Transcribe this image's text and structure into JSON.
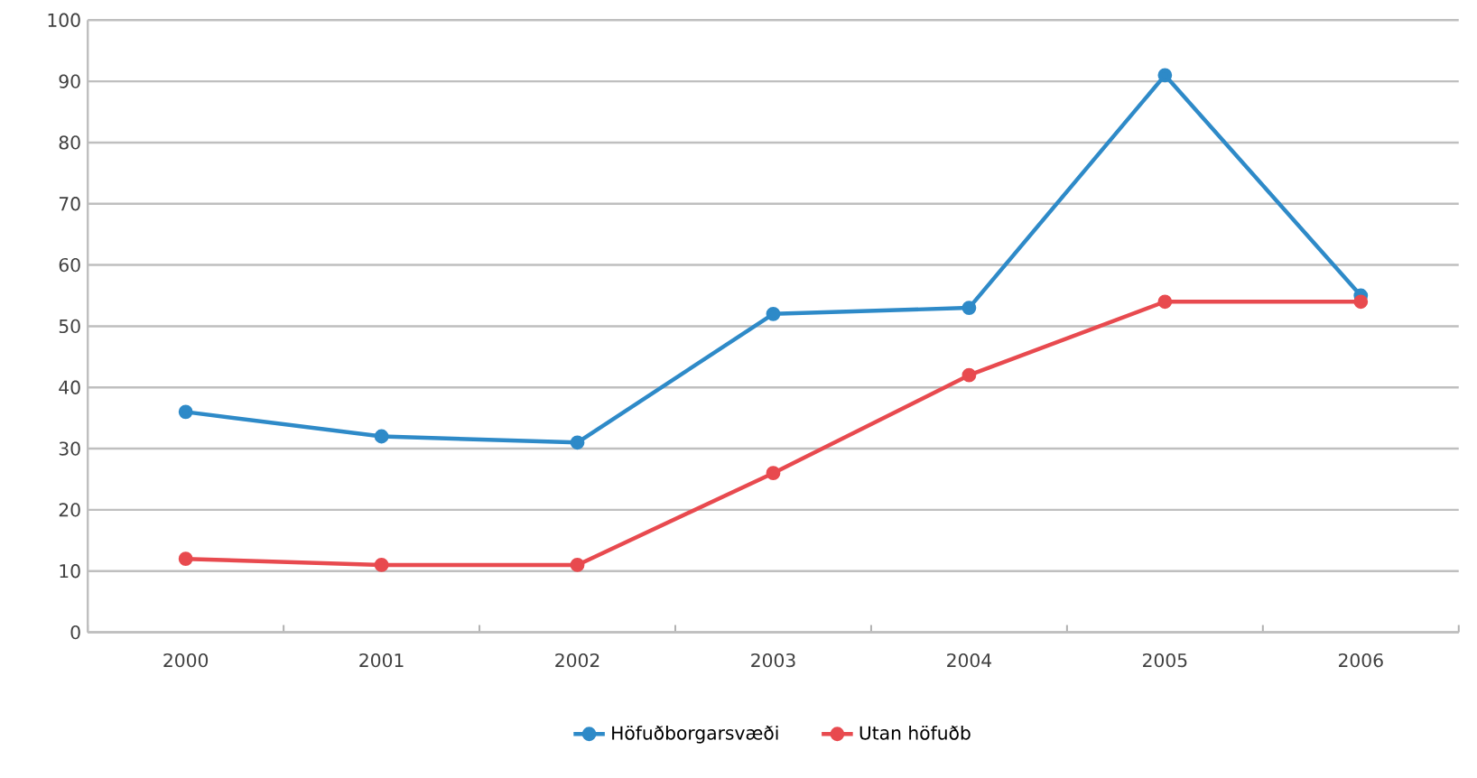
{
  "chart_data": {
    "type": "line",
    "categories": [
      "2000",
      "2001",
      "2002",
      "2003",
      "2004",
      "2005",
      "2006"
    ],
    "series": [
      {
        "name": "Höfuðborgarsvæði",
        "color": "#2e8ac8",
        "values": [
          36,
          32,
          31,
          52,
          53,
          91,
          55
        ]
      },
      {
        "name": "Utan höfuðb",
        "color": "#e84a4f",
        "values": [
          12,
          11,
          11,
          26,
          42,
          54,
          54
        ]
      }
    ],
    "ylim": [
      0,
      100
    ],
    "yticks": [
      0,
      10,
      20,
      30,
      40,
      50,
      60,
      70,
      80,
      90,
      100
    ],
    "grid": "y",
    "legend": "bottom",
    "marker": "circle",
    "line_style": "solid"
  }
}
